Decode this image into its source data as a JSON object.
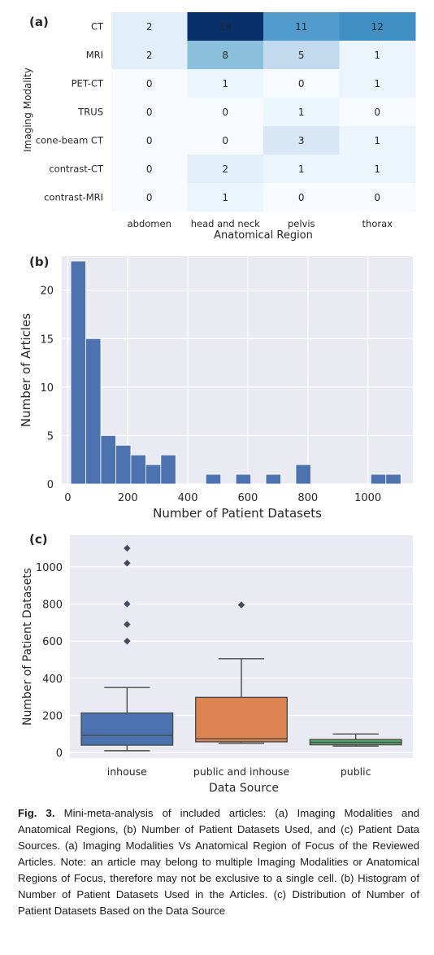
{
  "chart_data": [
    {
      "type": "heatmap",
      "panel_label": "(a)",
      "xlabel": "Anatomical Region",
      "ylabel": "Imaging Modality",
      "x_categories": [
        "abdomen",
        "head and neck",
        "pelvis",
        "thorax"
      ],
      "y_categories": [
        "CT",
        "MRI",
        "PET-CT",
        "TRUS",
        "cone-beam CT",
        "contrast-CT",
        "contrast-MRI"
      ],
      "values": [
        [
          2,
          19,
          11,
          12
        ],
        [
          2,
          8,
          5,
          1
        ],
        [
          0,
          1,
          0,
          1
        ],
        [
          0,
          0,
          1,
          0
        ],
        [
          0,
          0,
          3,
          1
        ],
        [
          0,
          2,
          1,
          1
        ],
        [
          0,
          1,
          0,
          0
        ]
      ],
      "colormap": "Blues",
      "value_range": [
        0,
        19
      ]
    },
    {
      "type": "bar",
      "subtype": "histogram",
      "panel_label": "(b)",
      "xlabel": "Number of Patient Datasets",
      "ylabel": "Number of Articles",
      "xlim": [
        -20,
        1150
      ],
      "ylim": [
        0,
        23.5
      ],
      "xticks": [
        0,
        200,
        400,
        600,
        800,
        1000
      ],
      "yticks": [
        0,
        5,
        10,
        15,
        20
      ],
      "bin_width": 50,
      "bins": [
        {
          "x0": 10,
          "value": 23
        },
        {
          "x0": 60,
          "value": 15
        },
        {
          "x0": 110,
          "value": 5
        },
        {
          "x0": 160,
          "value": 4
        },
        {
          "x0": 210,
          "value": 3
        },
        {
          "x0": 260,
          "value": 2
        },
        {
          "x0": 310,
          "value": 3
        },
        {
          "x0": 360,
          "value": 0
        },
        {
          "x0": 410,
          "value": 0
        },
        {
          "x0": 460,
          "value": 1
        },
        {
          "x0": 510,
          "value": 0
        },
        {
          "x0": 560,
          "value": 1
        },
        {
          "x0": 610,
          "value": 0
        },
        {
          "x0": 660,
          "value": 1
        },
        {
          "x0": 710,
          "value": 0
        },
        {
          "x0": 760,
          "value": 2
        },
        {
          "x0": 810,
          "value": 0
        },
        {
          "x0": 860,
          "value": 0
        },
        {
          "x0": 910,
          "value": 0
        },
        {
          "x0": 960,
          "value": 0
        },
        {
          "x0": 1010,
          "value": 1
        },
        {
          "x0": 1060,
          "value": 1
        }
      ],
      "color": "#4c72b0",
      "grid": true
    },
    {
      "type": "box",
      "panel_label": "(c)",
      "xlabel": "Data Source",
      "ylabel": "Number of Patient Datasets",
      "ylim": [
        -30,
        1170
      ],
      "yticks": [
        0,
        200,
        400,
        600,
        800,
        1000
      ],
      "grid": true,
      "boxes": [
        {
          "category": "inhouse",
          "whisker_low": 10,
          "q1": 40,
          "median": 93,
          "q3": 213,
          "whisker_high": 350,
          "outliers": [
            600,
            690,
            800,
            1020,
            1100
          ],
          "color": "#4c72b0"
        },
        {
          "category": "public and inhouse",
          "whisker_low": 50,
          "q1": 58,
          "median": 75,
          "q3": 297,
          "whisker_high": 505,
          "outliers": [
            795
          ],
          "color": "#dd8452"
        },
        {
          "category": "public",
          "whisker_low": 35,
          "q1": 42,
          "median": 55,
          "q3": 70,
          "whisker_high": 100,
          "outliers": [],
          "color": "#55a868"
        }
      ]
    }
  ],
  "caption": {
    "fig_label": "Fig. 3.",
    "text": "Mini-meta-analysis of included articles: (a) Imaging Modalities and Anatomical Regions, (b) Number of Patient Datasets Used, and (c) Patient Data Sources. (a) Imaging Modalities Vs Anatomical Region of Focus of the Reviewed Articles. Note: an article may belong to multiple Imaging Modalities or Anatomical Regions of Focus, therefore may not be exclusive to a single cell. (b) Histogram of Number of Patient Datasets Used in the Articles. (c) Distribution of Number of Patient Datasets Based on the Data Source"
  }
}
